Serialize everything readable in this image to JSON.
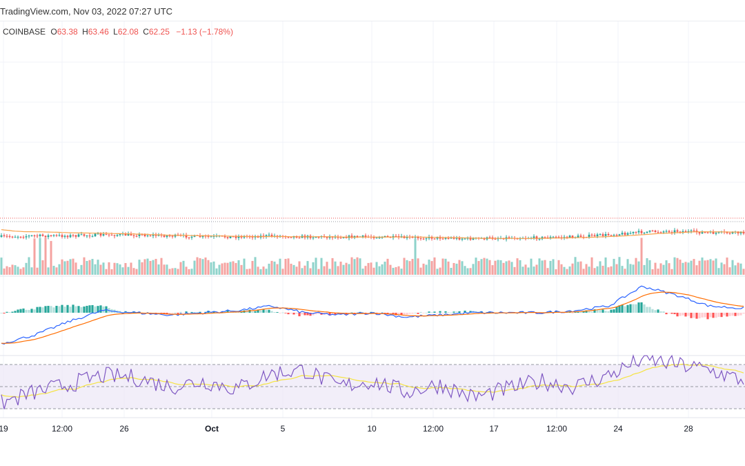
{
  "header": {
    "text": "TradingView.com, Nov 03, 2022 07:27 UTC"
  },
  "legend": {
    "exchange": "COINBASE",
    "o_label": "O",
    "o_value": "63.38",
    "h_label": "H",
    "h_value": "63.46",
    "l_label": "L",
    "l_value": "62.08",
    "c_label": "C",
    "c_value": "62.25",
    "change": "−1.13 (−1.78%)"
  },
  "colors": {
    "up": "#26a69a",
    "down": "#ef5350",
    "volume_up": "#8fd3cb",
    "volume_down": "#f5a3a1",
    "ma": "#f7a24b",
    "macd": "#2962ff",
    "signal": "#ff6d00",
    "rsi": "#7e57c2",
    "rsi_ma": "#f5e342",
    "rsi_band": "#ede7f6",
    "grid": "#f0f3fa"
  },
  "chart_data": {
    "type": "candlestick",
    "title": "COINBASE",
    "x_ticks": [
      {
        "label": "19",
        "bold": false
      },
      {
        "label": "12:00",
        "bold": false
      },
      {
        "label": "26",
        "bold": false
      },
      {
        "label": "Oct",
        "bold": true
      },
      {
        "label": "5",
        "bold": false
      },
      {
        "label": "10",
        "bold": false
      },
      {
        "label": "12:00",
        "bold": false
      },
      {
        "label": "17",
        "bold": false
      },
      {
        "label": "12:00",
        "bold": false
      },
      {
        "label": "24",
        "bold": false
      },
      {
        "label": "28",
        "bold": false
      }
    ],
    "last_bar": {
      "open": 63.38,
      "high": 63.46,
      "low": 62.08,
      "close": 62.25,
      "change": -1.13,
      "change_pct": -1.78
    },
    "price_trend": [
      40,
      41,
      41,
      42,
      42,
      41,
      40,
      40,
      41,
      40,
      40,
      40,
      39,
      39,
      38,
      39,
      39,
      40,
      42,
      45,
      46,
      44,
      44
    ],
    "macd_trend": [
      -14,
      -10,
      -4,
      1,
      0,
      -1,
      0,
      1,
      3,
      0,
      -1,
      0,
      -2,
      -1,
      0,
      0,
      0,
      1,
      3,
      12,
      8,
      3,
      2
    ],
    "rsi_trend": [
      35,
      45,
      52,
      60,
      58,
      50,
      55,
      48,
      62,
      65,
      50,
      55,
      45,
      52,
      40,
      48,
      55,
      50,
      60,
      75,
      70,
      65,
      55
    ],
    "rsi_levels": [
      70,
      50,
      30
    ],
    "grid": true,
    "legend": "top-left"
  }
}
